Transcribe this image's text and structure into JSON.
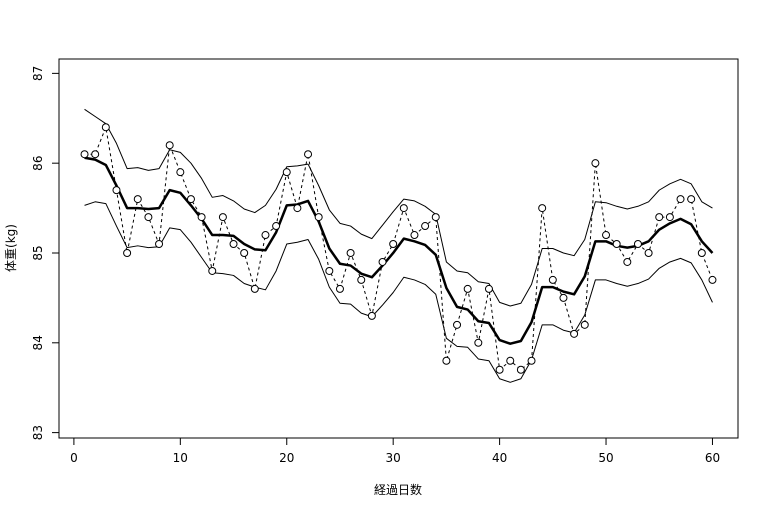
{
  "chart_data": {
    "type": "line",
    "title": "",
    "xlabel": "経過日数",
    "ylabel": "体重(kg)",
    "xlim": [
      -1.4,
      62.4
    ],
    "ylim": [
      82.94,
      87.16
    ],
    "xticks": [
      0,
      10,
      20,
      30,
      40,
      50,
      60
    ],
    "yticks": [
      83,
      84,
      85,
      86,
      87
    ],
    "grid": false,
    "legend": "none",
    "x": [
      1,
      2,
      3,
      4,
      5,
      6,
      7,
      8,
      9,
      10,
      11,
      12,
      13,
      14,
      15,
      16,
      17,
      18,
      19,
      20,
      21,
      22,
      23,
      24,
      25,
      26,
      27,
      28,
      29,
      30,
      31,
      32,
      33,
      34,
      35,
      36,
      37,
      38,
      39,
      40,
      41,
      42,
      43,
      44,
      45,
      46,
      47,
      48,
      49,
      50,
      51,
      52,
      53,
      54,
      55,
      56,
      57,
      58,
      59,
      60
    ],
    "series": [
      {
        "style": "points-dashed",
        "color": "#000000",
        "values": [
          86.1,
          86.1,
          86.4,
          85.7,
          85.0,
          85.6,
          85.4,
          85.1,
          86.2,
          85.9,
          85.6,
          85.4,
          84.8,
          85.4,
          85.1,
          85.0,
          84.6,
          85.2,
          85.3,
          85.9,
          85.5,
          86.1,
          85.4,
          84.8,
          84.6,
          85.0,
          84.7,
          84.3,
          84.9,
          85.1,
          85.5,
          85.2,
          85.3,
          85.4,
          83.8,
          84.2,
          84.6,
          84.0,
          84.6,
          83.7,
          83.8,
          83.7,
          83.8,
          85.5,
          84.7,
          84.5,
          84.1,
          84.2,
          86.0,
          85.2,
          85.1,
          84.9,
          85.1,
          85.0,
          85.4,
          85.4,
          85.6,
          85.6,
          85.0,
          84.7
        ]
      },
      {
        "style": "thick-solid",
        "color": "#000000",
        "values": [
          86.06,
          86.04,
          85.98,
          85.75,
          85.5,
          85.5,
          85.49,
          85.5,
          85.7,
          85.67,
          85.53,
          85.38,
          85.2,
          85.2,
          85.19,
          85.1,
          85.04,
          85.03,
          85.23,
          85.53,
          85.54,
          85.58,
          85.35,
          85.05,
          84.88,
          84.86,
          84.77,
          84.73,
          84.86,
          85.0,
          85.16,
          85.13,
          85.09,
          84.98,
          84.61,
          84.4,
          84.37,
          84.24,
          84.22,
          84.03,
          83.99,
          84.02,
          84.23,
          84.62,
          84.62,
          84.57,
          84.54,
          84.74,
          85.13,
          85.13,
          85.08,
          85.06,
          85.08,
          85.13,
          85.26,
          85.33,
          85.38,
          85.32,
          85.13,
          85.0
        ]
      },
      {
        "style": "thin-solid-upper",
        "color": "#000000",
        "values": [
          86.6,
          86.52,
          86.44,
          86.22,
          85.94,
          85.95,
          85.92,
          85.94,
          86.15,
          86.12,
          86.0,
          85.83,
          85.62,
          85.64,
          85.58,
          85.49,
          85.45,
          85.53,
          85.71,
          85.96,
          85.97,
          85.99,
          85.75,
          85.48,
          85.33,
          85.3,
          85.21,
          85.16,
          85.31,
          85.46,
          85.6,
          85.58,
          85.52,
          85.43,
          84.9,
          84.8,
          84.78,
          84.68,
          84.66,
          84.45,
          84.41,
          84.44,
          84.65,
          85.05,
          85.05,
          85.0,
          84.97,
          85.15,
          85.57,
          85.56,
          85.52,
          85.49,
          85.52,
          85.57,
          85.7,
          85.77,
          85.82,
          85.77,
          85.57,
          85.5
        ]
      },
      {
        "style": "thin-solid-lower",
        "color": "#000000",
        "values": [
          85.53,
          85.57,
          85.55,
          85.3,
          85.06,
          85.08,
          85.06,
          85.07,
          85.28,
          85.26,
          85.12,
          84.95,
          84.78,
          84.77,
          84.75,
          84.66,
          84.62,
          84.59,
          84.8,
          85.1,
          85.12,
          85.15,
          84.93,
          84.62,
          84.44,
          84.43,
          84.33,
          84.29,
          84.42,
          84.56,
          84.73,
          84.7,
          84.65,
          84.54,
          84.05,
          83.96,
          83.95,
          83.82,
          83.8,
          83.6,
          83.56,
          83.6,
          83.81,
          84.2,
          84.2,
          84.14,
          84.11,
          84.31,
          84.7,
          84.7,
          84.66,
          84.63,
          84.66,
          84.71,
          84.83,
          84.9,
          84.94,
          84.89,
          84.7,
          84.45
        ]
      }
    ]
  }
}
